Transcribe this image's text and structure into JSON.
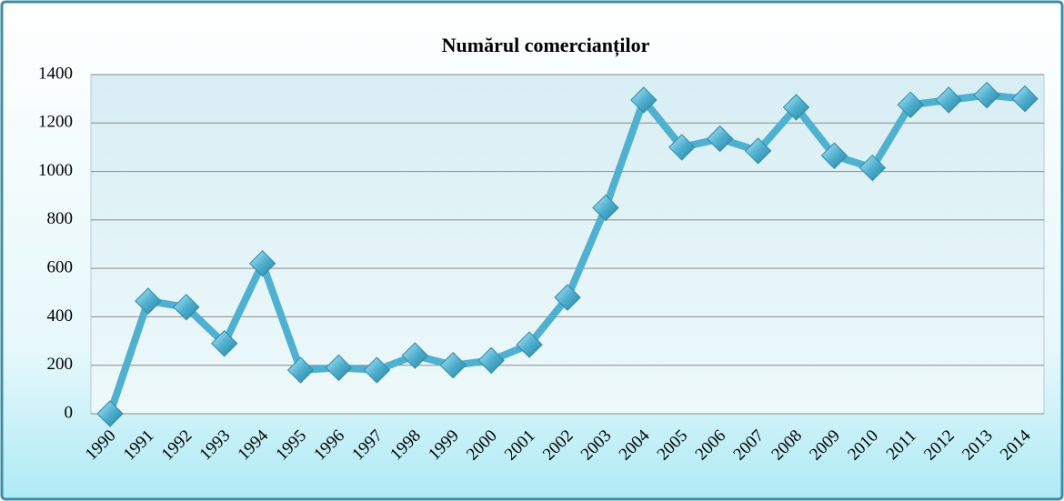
{
  "chart_data": {
    "type": "line",
    "title": "Numărul comercianților",
    "categories": [
      "1990",
      "1991",
      "1992",
      "1993",
      "1994",
      "1995",
      "1996",
      "1997",
      "1998",
      "1999",
      "2000",
      "2001",
      "2002",
      "2003",
      "2004",
      "2005",
      "2006",
      "2007",
      "2008",
      "2009",
      "2010",
      "2011",
      "2012",
      "2013",
      "2014"
    ],
    "values": [
      0,
      465,
      440,
      290,
      620,
      180,
      190,
      180,
      240,
      200,
      220,
      285,
      480,
      850,
      1295,
      1100,
      1135,
      1085,
      1265,
      1065,
      1015,
      1275,
      1295,
      1315,
      1300
    ],
    "color": "#4fb0d0",
    "ylim": [
      0,
      1400
    ],
    "yticks": [
      0,
      200,
      400,
      600,
      800,
      1000,
      1200,
      1400
    ],
    "grid": true
  }
}
